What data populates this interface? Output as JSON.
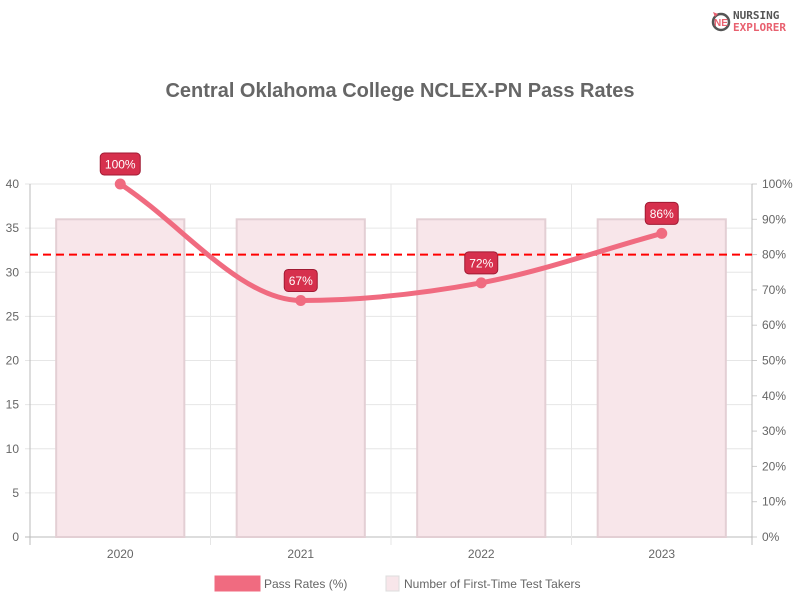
{
  "logo": {
    "line1": "NURSING",
    "line2": "EXPLORER"
  },
  "chart_data": {
    "type": "bar+line",
    "title": "Central Oklahoma College NCLEX-PN Pass Rates",
    "categories": [
      "2020",
      "2021",
      "2022",
      "2023"
    ],
    "series": [
      {
        "name": "Pass Rates (%)",
        "type": "line",
        "axis": "right",
        "values": [
          100,
          67,
          72,
          86
        ],
        "labels": [
          "100%",
          "67%",
          "72%",
          "86%"
        ],
        "color": "#f06b80"
      },
      {
        "name": "Number of First-Time Test Takers",
        "type": "bar",
        "axis": "left",
        "values": [
          36,
          36,
          36,
          36
        ],
        "color": "#f8e6ea"
      }
    ],
    "left_axis": {
      "min": 0,
      "max": 40,
      "ticks": [
        "0",
        "5",
        "10",
        "15",
        "20",
        "25",
        "30",
        "35",
        "40"
      ]
    },
    "right_axis": {
      "min": 0,
      "max": 100,
      "ticks": [
        "0%",
        "10%",
        "20%",
        "30%",
        "40%",
        "50%",
        "60%",
        "70%",
        "80%",
        "90%",
        "100%"
      ]
    },
    "reference_line": {
      "value": 80,
      "axis": "right",
      "style": "dashed",
      "color": "#ff0000"
    },
    "grid": true,
    "legend": "bottom"
  }
}
